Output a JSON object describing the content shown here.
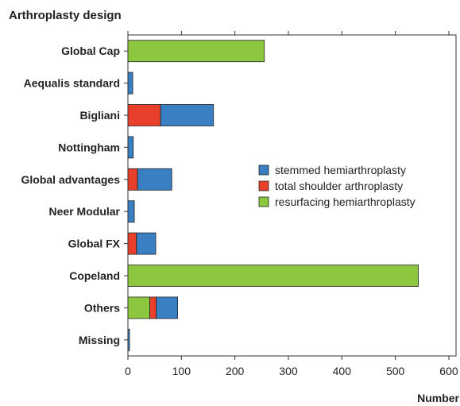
{
  "chart_data": {
    "type": "bar",
    "orientation": "horizontal",
    "stacked": true,
    "title": "Arthroplasty design",
    "xlabel": "Number",
    "ylabel": "",
    "xlim": [
      0,
      620
    ],
    "xticks": [
      0,
      100,
      200,
      300,
      400,
      500,
      600
    ],
    "grid": false,
    "legend_position": "right",
    "categories": [
      "Global Cap",
      "Aequalis standard",
      "Bigliani",
      "Nottingham",
      "Global advantages",
      "Neer Modular",
      "Global FX",
      "Copeland",
      "Others",
      "Missing"
    ],
    "series": [
      {
        "name": "resurfacing hemiarthroplasty",
        "color": "#8dc63f",
        "values": [
          255,
          0,
          0,
          0,
          0,
          0,
          0,
          543,
          41,
          0
        ]
      },
      {
        "name": "total shoulder arthroplasty",
        "color": "#e8402a",
        "values": [
          0,
          0,
          61,
          0,
          18,
          0,
          16,
          0,
          12,
          0
        ]
      },
      {
        "name": "stemmed hemiarthroplasty",
        "color": "#3a7fc1",
        "values": [
          0,
          9,
          99,
          10,
          64,
          12,
          36,
          0,
          40,
          3
        ]
      }
    ],
    "legend": [
      "stemmed hemiarthroplasty",
      "total shoulder arthroplasty",
      "resurfacing hemiarthroplasty"
    ]
  }
}
